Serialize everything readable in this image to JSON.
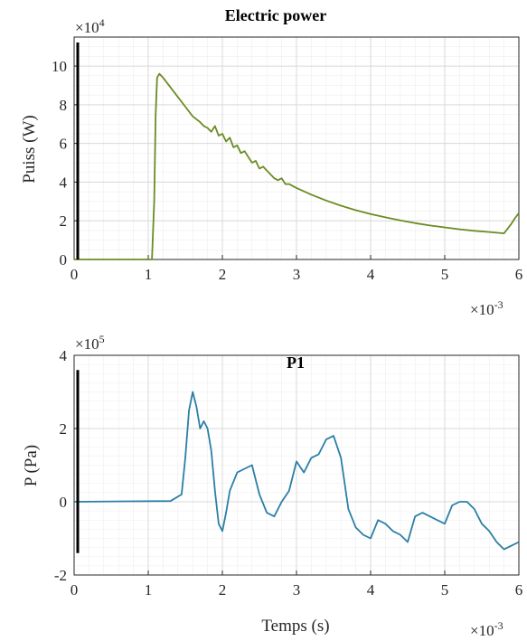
{
  "chart_data": [
    {
      "type": "line",
      "title": "Electric power",
      "xlabel": "",
      "ylabel": "Puiss (W)",
      "x_exponent": "×10",
      "x_exponent_power": "-3",
      "y_exponent": "×10",
      "y_exponent_power": "4",
      "xlim": [
        0,
        6
      ],
      "ylim": [
        0,
        11.5
      ],
      "xticks": [
        "0",
        "1",
        "2",
        "3",
        "4",
        "5",
        "6"
      ],
      "yticks": [
        "0",
        "2",
        "4",
        "6",
        "8",
        "10"
      ],
      "grid": true,
      "series": [
        {
          "color": "#6b8c22",
          "x": [
            0,
            1.05,
            1.08,
            1.1,
            1.12,
            1.15,
            1.2,
            1.3,
            1.4,
            1.5,
            1.6,
            1.7,
            1.75,
            1.8,
            1.85,
            1.9,
            1.95,
            2.0,
            2.05,
            2.1,
            2.15,
            2.2,
            2.25,
            2.3,
            2.35,
            2.4,
            2.45,
            2.5,
            2.55,
            2.6,
            2.65,
            2.7,
            2.75,
            2.8,
            2.85,
            2.9,
            3.0,
            3.2,
            3.4,
            3.6,
            3.8,
            4.0,
            4.2,
            4.4,
            4.6,
            4.8,
            5.0,
            5.2,
            5.4,
            5.6,
            5.8,
            5.85,
            5.9,
            5.95,
            6.0
          ],
          "y": [
            0,
            0,
            3.0,
            7.5,
            9.4,
            9.6,
            9.4,
            8.9,
            8.4,
            7.9,
            7.4,
            7.1,
            6.9,
            6.8,
            6.6,
            6.9,
            6.4,
            6.5,
            6.1,
            6.3,
            5.8,
            5.9,
            5.5,
            5.6,
            5.3,
            5.0,
            5.1,
            4.7,
            4.8,
            4.6,
            4.4,
            4.2,
            4.1,
            4.2,
            3.9,
            3.9,
            3.7,
            3.35,
            3.05,
            2.78,
            2.55,
            2.35,
            2.18,
            2.02,
            1.88,
            1.76,
            1.66,
            1.56,
            1.48,
            1.42,
            1.35,
            1.6,
            1.85,
            2.15,
            2.4
          ]
        }
      ]
    },
    {
      "type": "line",
      "title": "P1",
      "xlabel": "Temps (s)",
      "ylabel": "P (Pa)",
      "x_exponent": "×10",
      "x_exponent_power": "-3",
      "y_exponent": "×10",
      "y_exponent_power": "5",
      "xlim": [
        0,
        6
      ],
      "ylim": [
        -2,
        4
      ],
      "xticks": [
        "0",
        "1",
        "2",
        "3",
        "4",
        "5",
        "6"
      ],
      "yticks": [
        "-2",
        "0",
        "2",
        "4"
      ],
      "grid": true,
      "series": [
        {
          "color": "#2b7fa6",
          "x": [
            0,
            1.3,
            1.45,
            1.5,
            1.55,
            1.6,
            1.65,
            1.7,
            1.75,
            1.8,
            1.85,
            1.9,
            1.95,
            2.0,
            2.05,
            2.1,
            2.2,
            2.3,
            2.4,
            2.5,
            2.6,
            2.7,
            2.8,
            2.9,
            3.0,
            3.1,
            3.2,
            3.3,
            3.4,
            3.5,
            3.6,
            3.7,
            3.8,
            3.9,
            4.0,
            4.1,
            4.2,
            4.3,
            4.4,
            4.5,
            4.6,
            4.7,
            4.8,
            4.9,
            5.0,
            5.1,
            5.2,
            5.3,
            5.4,
            5.5,
            5.6,
            5.7,
            5.8,
            5.9,
            6.0
          ],
          "y": [
            0,
            0.02,
            0.2,
            1.2,
            2.5,
            3.0,
            2.6,
            2.0,
            2.2,
            2.0,
            1.4,
            0.3,
            -0.6,
            -0.8,
            -0.3,
            0.3,
            0.8,
            0.9,
            1.0,
            0.2,
            -0.3,
            -0.4,
            0.0,
            0.3,
            1.1,
            0.8,
            1.2,
            1.3,
            1.7,
            1.8,
            1.2,
            -0.2,
            -0.7,
            -0.9,
            -1.0,
            -0.5,
            -0.6,
            -0.8,
            -0.9,
            -1.1,
            -0.4,
            -0.3,
            -0.4,
            -0.5,
            -0.6,
            -0.1,
            0.0,
            0.0,
            -0.2,
            -0.6,
            -0.8,
            -1.1,
            -1.3,
            -1.2,
            -1.1
          ]
        }
      ]
    }
  ]
}
